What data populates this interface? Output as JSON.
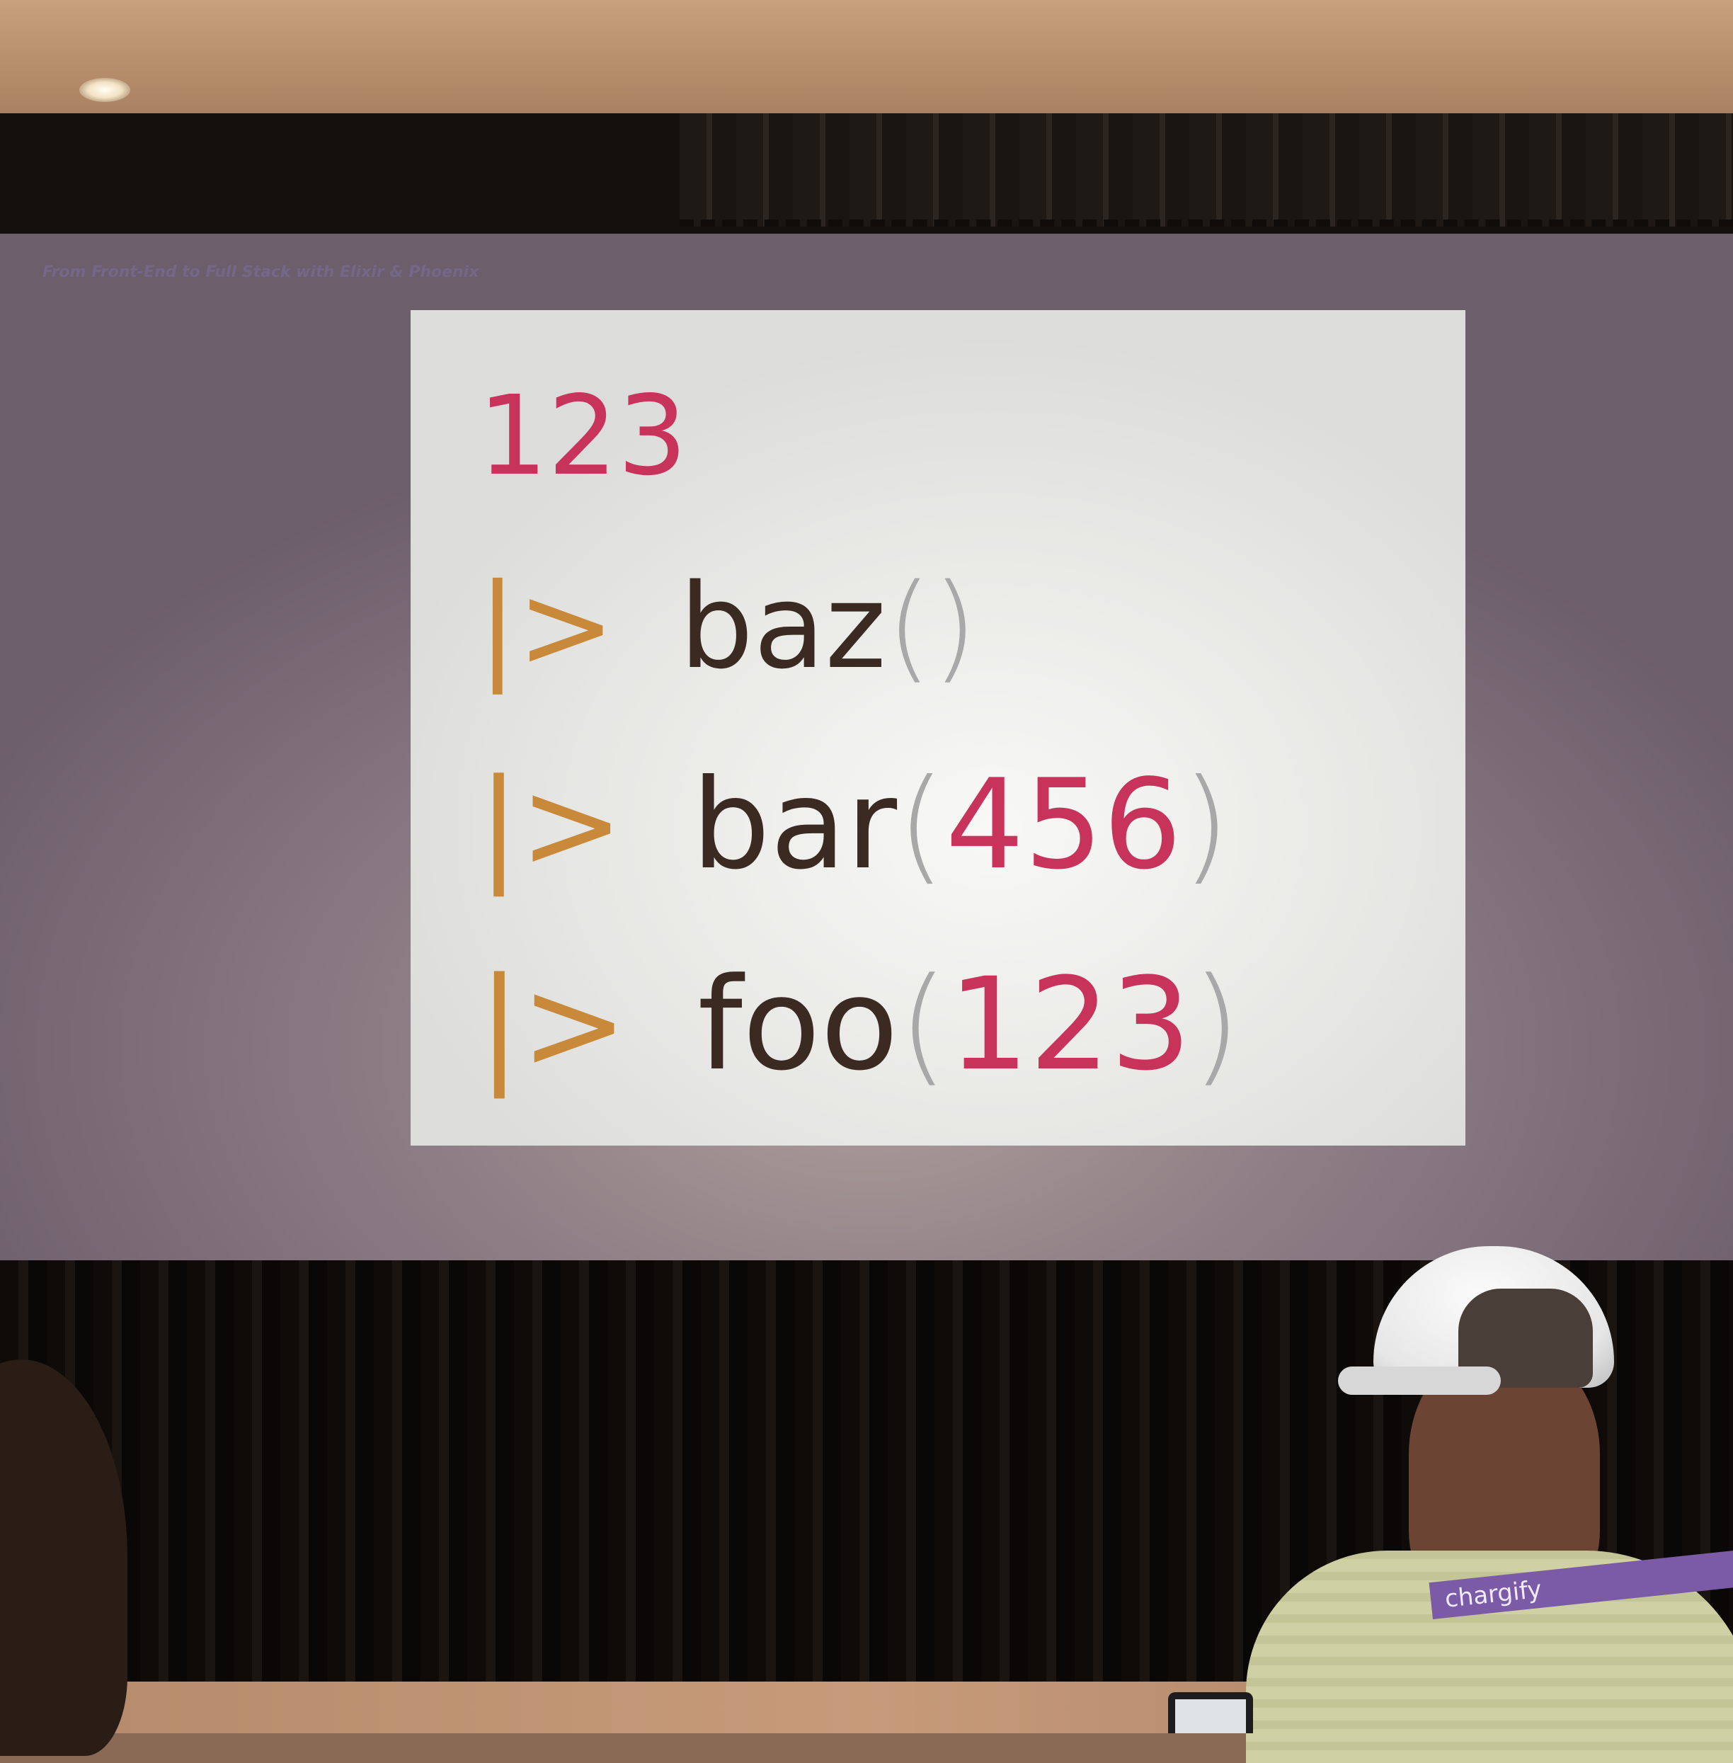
{
  "slide": {
    "title": "From Front-End to Full Stack with Elixir & Phoenix",
    "code_lines": [
      {
        "text": "123"
      },
      {
        "pipe": "|>",
        "fn": "baz",
        "open": "(",
        "arg": "",
        "close": ")"
      },
      {
        "pipe": "|>",
        "fn": "bar",
        "open": "(",
        "arg": "456",
        "close": ")"
      },
      {
        "pipe": "|>",
        "fn": "foo",
        "open": "(",
        "arg": "123",
        "close": ")"
      }
    ]
  },
  "audience": {
    "lanyard_text": "chargify"
  },
  "colors": {
    "number": "#c8335c",
    "pipe": "#c88a3a",
    "function": "#3a2a22",
    "paren": "#a8a8a8",
    "slide_background": "#f2f2f0",
    "projection_background": "#8e7f86"
  }
}
